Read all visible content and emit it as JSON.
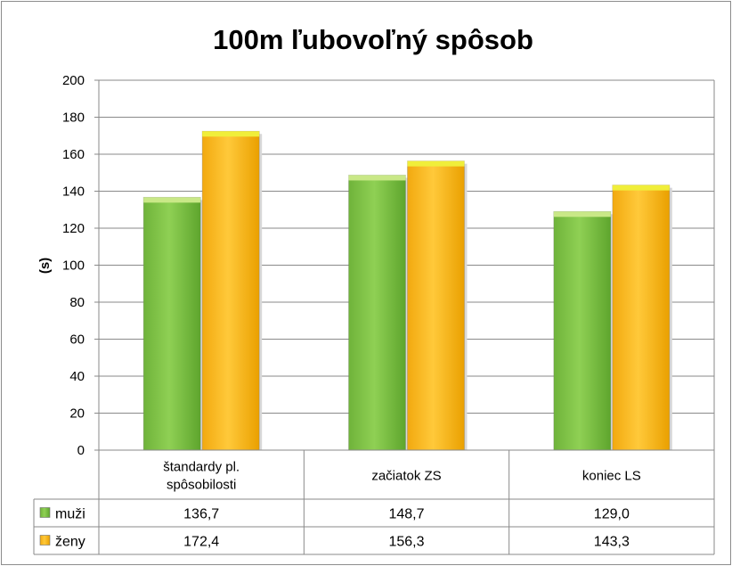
{
  "chart_data": {
    "type": "bar",
    "title": "100m ľubovoľný spôsob",
    "ylabel": "(s)",
    "xlabel": "",
    "ylim": [
      0,
      200
    ],
    "yticks": [
      "0",
      "20",
      "40",
      "60",
      "80",
      "100",
      "120",
      "140",
      "160",
      "180",
      "200"
    ],
    "grid": true,
    "legend": "data-table-left",
    "categories": [
      [
        "štandardy pl.",
        "spôsobilosti"
      ],
      [
        "začiatok ZS"
      ],
      [
        "koniec LS"
      ]
    ],
    "series": [
      {
        "name": "muži",
        "values": [
          136.7,
          148.7,
          129.0
        ],
        "labels": [
          "136,7",
          "148,7",
          "129,0"
        ],
        "color": "#7ac143",
        "top_color": "#c9e887"
      },
      {
        "name": "ženy",
        "values": [
          172.4,
          156.3,
          143.3
        ],
        "labels": [
          "172,4",
          "156,3",
          "143,3"
        ],
        "color": "#f7b81f",
        "top_color": "#f0ee3a"
      }
    ]
  }
}
